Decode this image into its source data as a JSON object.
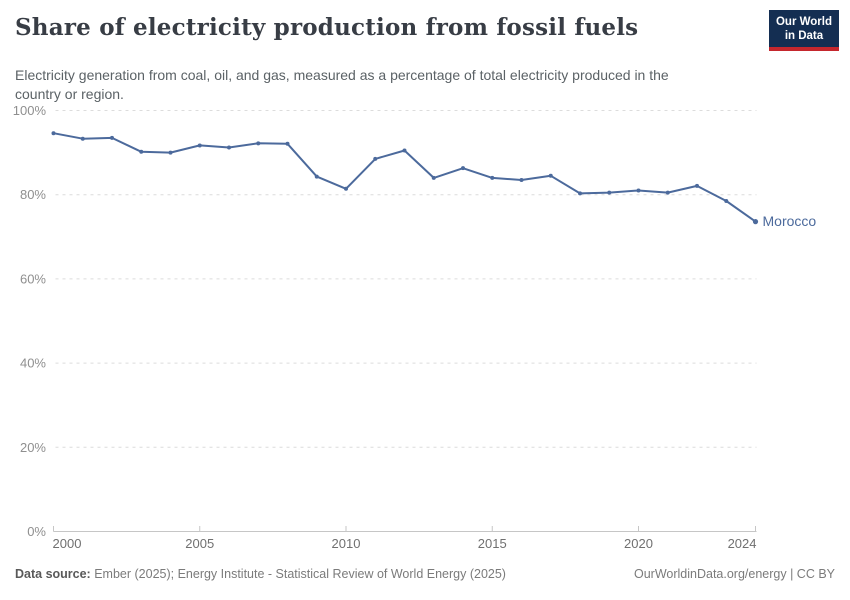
{
  "header": {
    "title": "Share of electricity production from fossil fuels",
    "subtitle": "Electricity generation from coal, oil, and gas, measured as a percentage of total electricity produced in the country or region.",
    "logo": {
      "line1": "Our World",
      "line2": "in Data"
    }
  },
  "footer": {
    "datasource_label": "Data source:",
    "datasource_text": " Ember (2025); Energy Institute - Statistical Review of World Energy (2025)",
    "rights": "OurWorldinData.org/energy | CC BY"
  },
  "colors": {
    "entity_line": "#4C6A9C",
    "grid": "#dcdcdc",
    "axis": "#c6c6c6",
    "y_tick_label": "#8f8f8f",
    "x_tick_label": "#707070",
    "logo_bg": "#142e52",
    "logo_stripe": "#c5272d"
  },
  "chart_data": {
    "type": "line",
    "title": "Share of electricity production from fossil fuels",
    "subtitle": "Electricity generation from coal, oil, and gas, measured as a percentage of total electricity produced in the country or region.",
    "xlabel": "",
    "ylabel": "",
    "xlim": [
      2000,
      2024
    ],
    "ylim": [
      0,
      100
    ],
    "x_ticks": [
      2000,
      2005,
      2010,
      2015,
      2020,
      2024
    ],
    "y_ticks": [
      0,
      20,
      40,
      60,
      80,
      100
    ],
    "y_tick_suffix": "%",
    "grid": "horizontal-dashed",
    "legend": "end-of-line-label",
    "series": [
      {
        "name": "Morocco",
        "color": "#4C6A9C",
        "x": [
          2000,
          2001,
          2002,
          2003,
          2004,
          2005,
          2006,
          2007,
          2008,
          2009,
          2010,
          2011,
          2012,
          2013,
          2014,
          2015,
          2016,
          2017,
          2018,
          2019,
          2020,
          2021,
          2022,
          2023,
          2024
        ],
        "values": [
          94.6,
          93.3,
          93.5,
          90.2,
          90.0,
          91.7,
          91.2,
          92.2,
          92.1,
          84.3,
          81.4,
          88.5,
          90.5,
          84.0,
          86.3,
          84.0,
          83.5,
          84.5,
          80.3,
          80.5,
          81.0,
          80.5,
          82.1,
          78.5,
          73.6
        ]
      }
    ]
  }
}
